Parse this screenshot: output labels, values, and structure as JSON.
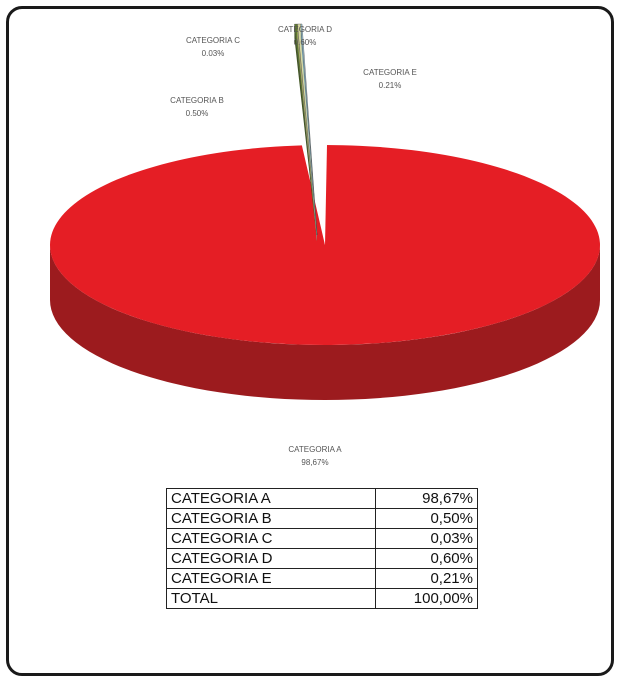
{
  "chart_data": {
    "type": "pie",
    "style": "3d",
    "categories": [
      "CATEGORIA A",
      "CATEGORIA B",
      "CATEGORIA C",
      "CATEGORIA D",
      "CATEGORIA E"
    ],
    "values": [
      98.67,
      0.5,
      0.03,
      0.6,
      0.21
    ],
    "value_labels": [
      "98,67%",
      "0.50%",
      "0.03%",
      "0.60%",
      "0.21%"
    ],
    "colors": [
      "#e51e25",
      "#5e7a2c",
      "#c8d05a",
      "#d8d8a0",
      "#a9d3e3"
    ],
    "side_colors": [
      "#9c1b1e",
      "#3f5420",
      "#8d9440",
      "#a8a878",
      "#7aa6b8"
    ],
    "exploded": [
      "CATEGORIA B",
      "CATEGORIA C",
      "CATEGORIA D",
      "CATEGORIA E"
    ]
  },
  "table": {
    "rows": [
      {
        "category": "CATEGORIA A",
        "percent": "98,67%"
      },
      {
        "category": "CATEGORIA B",
        "percent": "0,50%"
      },
      {
        "category": "CATEGORIA C",
        "percent": "0,03%"
      },
      {
        "category": "CATEGORIA D",
        "percent": "0,60%"
      },
      {
        "category": "CATEGORIA E",
        "percent": "0,21%"
      },
      {
        "category": "TOTAL",
        "percent": "100,00%"
      }
    ]
  }
}
